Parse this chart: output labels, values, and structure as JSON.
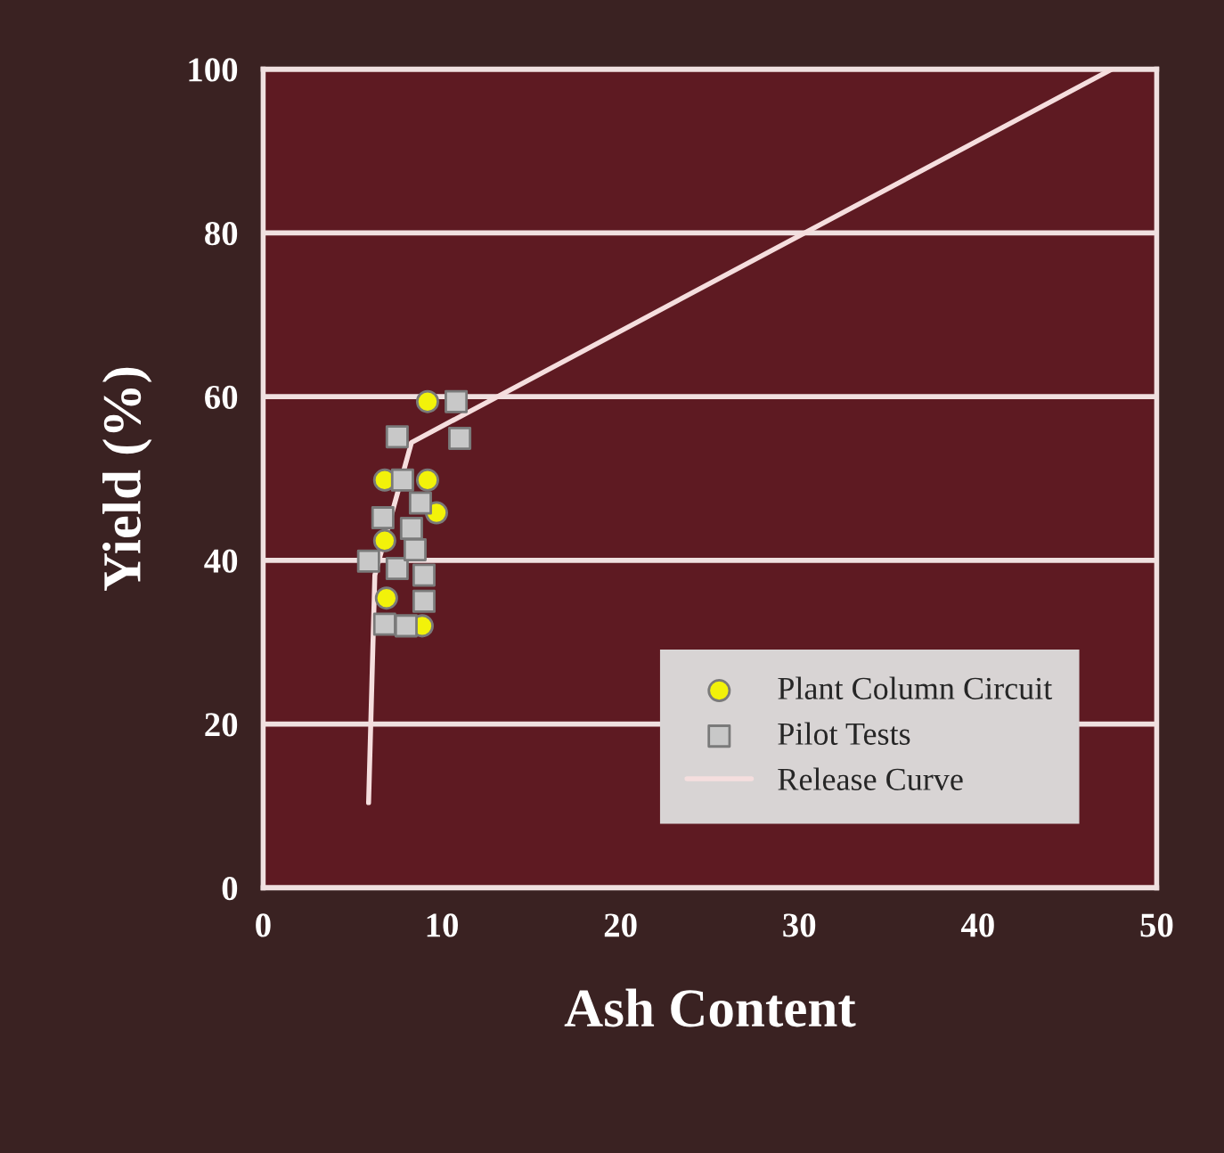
{
  "chart_data": {
    "type": "scatter",
    "xlabel": "Ash Content",
    "ylabel": "Yield (%)",
    "xlim": [
      0,
      50
    ],
    "xticks": [
      0,
      10,
      20,
      30,
      40,
      50
    ],
    "ylim": [
      0,
      100
    ],
    "yticks": [
      0,
      20,
      40,
      60,
      80,
      100
    ],
    "grid": "y",
    "legend": "bottom right",
    "series": [
      {
        "name": "Plant Column Circuit",
        "color": "#f2f20a",
        "marker": "circle",
        "x": [
          9.2,
          6.8,
          9.2,
          9.7,
          6.8,
          6.9,
          8.9
        ],
        "values": [
          59.4,
          49.8,
          49.8,
          45.8,
          42.4,
          35.4,
          32.0
        ]
      },
      {
        "name": "Pilot Tests",
        "color": "#c8c8c8",
        "marker": "square",
        "x": [
          10.8,
          7.5,
          11.0,
          7.8,
          8.8,
          8.3,
          6.7,
          5.9,
          7.5,
          9.0,
          9.0,
          6.8,
          8.0,
          8.5
        ],
        "values": [
          59.4,
          55.1,
          54.9,
          49.8,
          47.0,
          43.9,
          45.2,
          39.9,
          39.0,
          38.2,
          35.0,
          32.2,
          32.0,
          41.3
        ]
      },
      {
        "name": "Release Curve",
        "type": "line",
        "color": "#f5dede",
        "marker": "none",
        "x": [
          5.9,
          6.25,
          8.3,
          47.5
        ],
        "values": [
          10.4,
          38.2,
          54.4,
          100
        ]
      }
    ]
  }
}
